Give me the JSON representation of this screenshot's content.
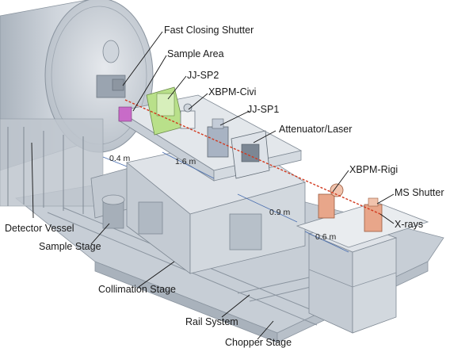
{
  "labels": {
    "fast_closing_shutter": "Fast Closing Shutter",
    "sample_area": "Sample Area",
    "jj_sp2": "JJ-SP2",
    "xbpm_civi": "XBPM-Civi",
    "jj_sp1": "JJ-SP1",
    "attenuator_laser": "Attenuator/Laser",
    "xbpm_rigi": "XBPM-Rigi",
    "ms_shutter": "MS Shutter",
    "x_rays": "X-rays",
    "detector_vessel": "Detector Vessel",
    "sample_stage": "Sample Stage",
    "collimation_stage": "Collimation Stage",
    "rail_system": "Rail System",
    "chopper_stage": "Chopper Stage"
  },
  "dimensions": {
    "d_0_4": "0.4 m",
    "d_1_6": "1.6 m",
    "d_0_9": "0.9 m",
    "d_0_6": "0.6 m"
  },
  "colors": {
    "metal": "#d6dbe2",
    "metal_dark": "#9aa4b0",
    "beam": "#d2391e",
    "jj_sp2_green": "#b9e08a",
    "magenta": "#c86bc8",
    "copper": "#e8a68a"
  }
}
